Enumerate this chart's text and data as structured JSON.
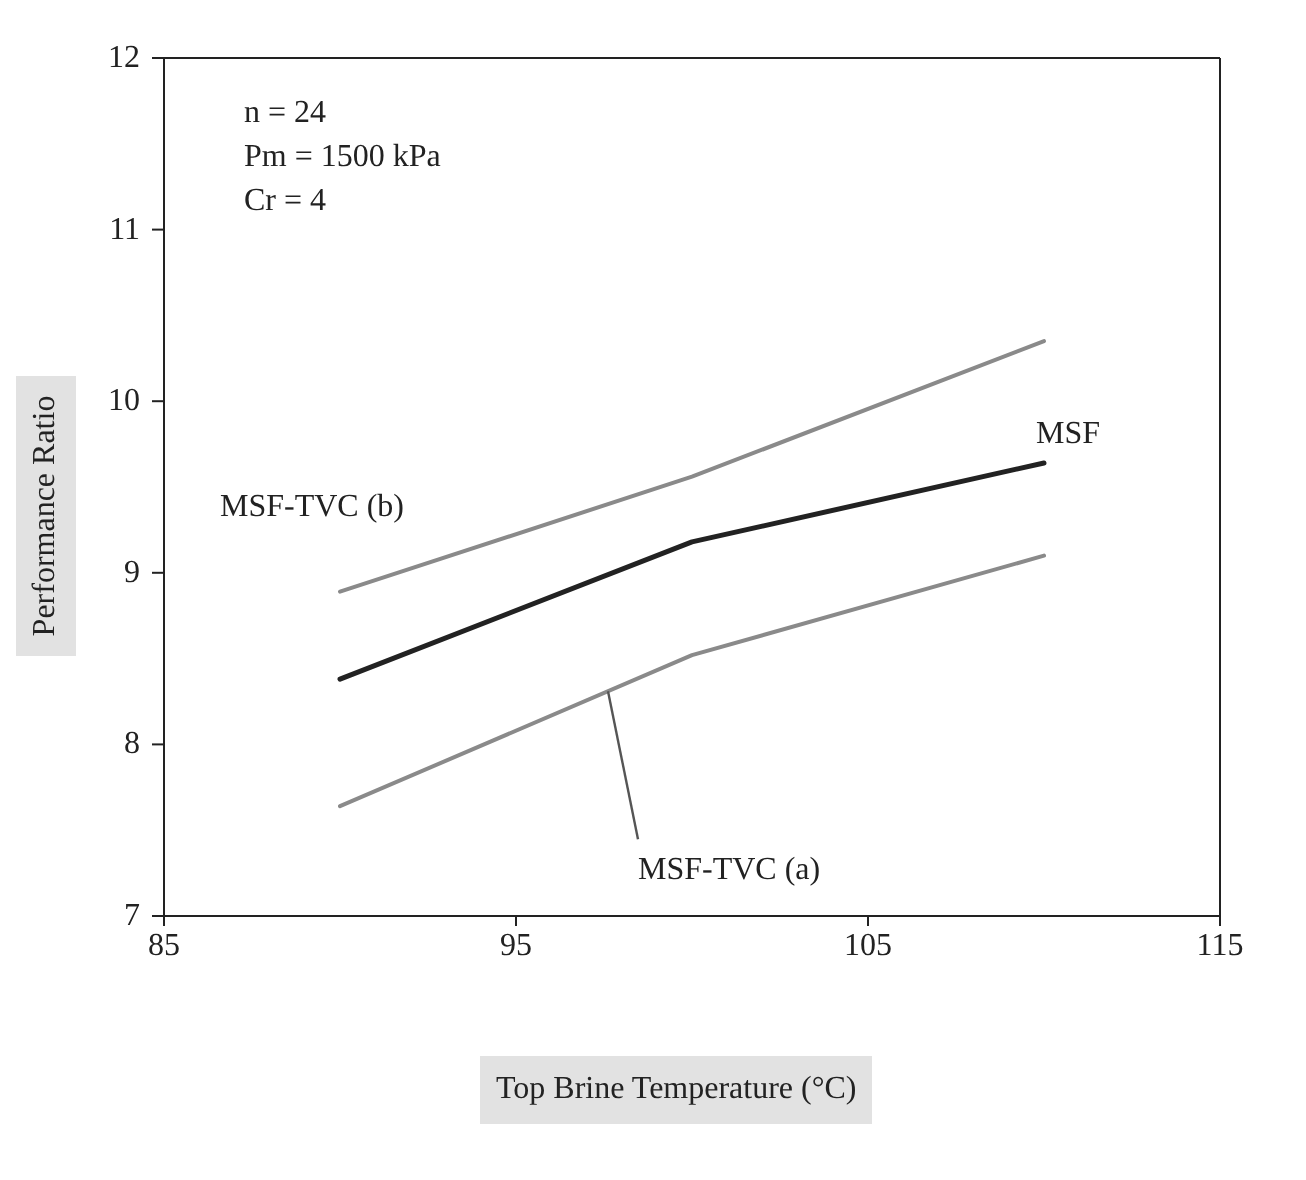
{
  "chart_data": {
    "type": "line",
    "xlabel": "Top Brine Temperature (°C)",
    "ylabel": "Performance Ratio",
    "x": [
      90,
      100,
      110
    ],
    "series": [
      {
        "name": "MSF-TVC (b)",
        "color": "#8a8a8a",
        "values": [
          8.89,
          9.56,
          10.35
        ]
      },
      {
        "name": "MSF",
        "color": "#222222",
        "values": [
          8.38,
          9.18,
          9.64
        ]
      },
      {
        "name": "MSF-TVC (a)",
        "color": "#8a8a8a",
        "values": [
          7.64,
          8.52,
          9.1
        ]
      }
    ],
    "xlim": [
      85,
      115
    ],
    "xticks": [
      85,
      95,
      105,
      115
    ],
    "ylim": [
      7,
      12
    ],
    "yticks": [
      7,
      8,
      9,
      10,
      11,
      12
    ],
    "grid": false,
    "legend": false,
    "marker": "none",
    "line_style": "solid",
    "annotations": [
      "n = 24",
      "Pm = 1500 kPa",
      "Cr = 4"
    ]
  }
}
